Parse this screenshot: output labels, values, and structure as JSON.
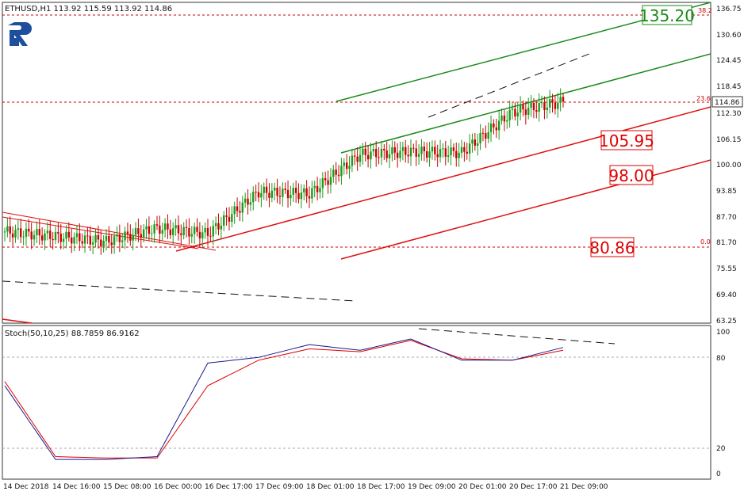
{
  "header": {
    "symbol_info": "ETHUSD,H1  113.92 115.59 113.92 114.86",
    "stoch_info": "Stoch(50,10,25) 88.7859 86.9162"
  },
  "price_axis": {
    "ticks": [
      "136.75",
      "130.60",
      "124.45",
      "118.45",
      "112.30",
      "106.15",
      "100.00",
      "93.85",
      "87.70",
      "81.70",
      "75.55",
      "69.40",
      "63.25"
    ],
    "current_price": "114.86"
  },
  "stoch_axis": {
    "ticks": [
      "100",
      "80",
      "20",
      "0"
    ]
  },
  "time_axis": {
    "labels": [
      "14 Dec 2018",
      "14 Dec 16:00",
      "15 Dec 08:00",
      "16 Dec 00:00",
      "16 Dec 17:00",
      "17 Dec 09:00",
      "18 Dec 01:00",
      "18 Dec 17:00",
      "19 Dec 09:00",
      "20 Dec 01:00",
      "20 Dec 17:00",
      "21 Dec 09:00"
    ]
  },
  "fibo": {
    "level_0": "0.0",
    "level_23_6": "23.6",
    "level_38_2": "38.2"
  },
  "price_labels": [
    {
      "text": "135.20",
      "color": "#1a8a1a",
      "value": 135.2
    },
    {
      "text": "105.95",
      "color": "#dd0000",
      "value": 105.95
    },
    {
      "text": "98.00",
      "color": "#dd0000",
      "value": 98.0
    },
    {
      "text": "80.86",
      "color": "#dd0000",
      "value": 80.86
    }
  ],
  "colors": {
    "bull": "#1a9b1a",
    "bear": "#cc0000",
    "green_channel": "#1a8a1a",
    "red_channel": "#dd1111",
    "fibo_line": "#cc0000",
    "stoch_main": "#1a1a8c",
    "stoch_signal": "#dd0000",
    "logo": "#1f4e9e"
  },
  "chart_data": {
    "type": "candlestick",
    "symbol": "ETHUSD",
    "timeframe": "H1",
    "last_ohlc": {
      "open": 113.92,
      "high": 115.59,
      "low": 113.92,
      "close": 114.86
    },
    "y_range": [
      63.25,
      136.75
    ],
    "close_series": [
      {
        "x": "14 Dec 2018",
        "y": 84.6
      },
      {
        "x": "14 Dec 16:00",
        "y": 83.5
      },
      {
        "x": "15 Dec 08:00",
        "y": 82.3
      },
      {
        "x": "16 Dec 00:00",
        "y": 85.4
      },
      {
        "x": "16 Dec 17:00",
        "y": 84.1
      },
      {
        "x": "17 Dec 09:00",
        "y": 93.8
      },
      {
        "x": "18 Dec 01:00",
        "y": 93.4
      },
      {
        "x": "18 Dec 17:00",
        "y": 102.6
      },
      {
        "x": "19 Dec 09:00",
        "y": 103.2
      },
      {
        "x": "20 Dec 01:00",
        "y": 103.0
      },
      {
        "x": "20 Dec 17:00",
        "y": 112.5
      },
      {
        "x": "21 Dec 09:00",
        "y": 114.86
      }
    ],
    "fibonacci": [
      {
        "level": 0.0,
        "price": 80.86
      },
      {
        "level": 23.6,
        "price": 114.86
      },
      {
        "level": 38.2,
        "price": 135.2
      }
    ],
    "stochastic": {
      "params": "Stoch(50,10,25)",
      "main": 88.7859,
      "signal": 86.9162,
      "levels": [
        80,
        20
      ],
      "main_series": [
        {
          "x": "14 Dec 2018",
          "y": 62
        },
        {
          "x": "14 Dec 16:00",
          "y": 10
        },
        {
          "x": "15 Dec 08:00",
          "y": 10
        },
        {
          "x": "16 Dec 00:00",
          "y": 12
        },
        {
          "x": "16 Dec 17:00",
          "y": 78
        },
        {
          "x": "17 Dec 09:00",
          "y": 82
        },
        {
          "x": "18 Dec 01:00",
          "y": 91
        },
        {
          "x": "18 Dec 17:00",
          "y": 87
        },
        {
          "x": "19 Dec 09:00",
          "y": 95
        },
        {
          "x": "20 Dec 01:00",
          "y": 80
        },
        {
          "x": "20 Dec 17:00",
          "y": 80
        },
        {
          "x": "21 Dec 09:00",
          "y": 89
        }
      ],
      "signal_series": [
        {
          "x": "14 Dec 2018",
          "y": 65
        },
        {
          "x": "14 Dec 16:00",
          "y": 12
        },
        {
          "x": "15 Dec 08:00",
          "y": 11
        },
        {
          "x": "16 Dec 00:00",
          "y": 11
        },
        {
          "x": "16 Dec 17:00",
          "y": 62
        },
        {
          "x": "17 Dec 09:00",
          "y": 80
        },
        {
          "x": "18 Dec 01:00",
          "y": 88
        },
        {
          "x": "18 Dec 17:00",
          "y": 86
        },
        {
          "x": "19 Dec 09:00",
          "y": 94
        },
        {
          "x": "20 Dec 01:00",
          "y": 81
        },
        {
          "x": "20 Dec 17:00",
          "y": 80
        },
        {
          "x": "21 Dec 09:00",
          "y": 87
        }
      ]
    }
  }
}
